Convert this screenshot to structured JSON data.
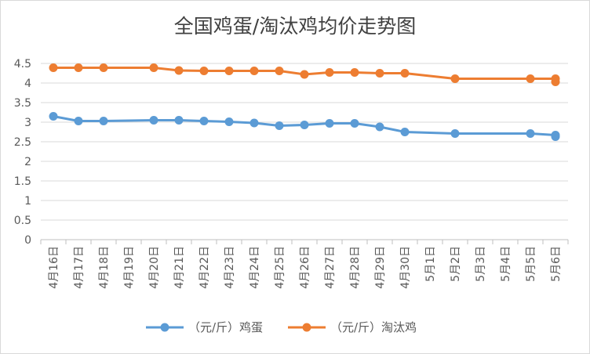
{
  "chart_data": {
    "type": "line",
    "title": "全国鸡蛋/淘汰鸡均价走势图",
    "categories": [
      "4月16日",
      "4月17日",
      "4月18日",
      "4月19日",
      "4月20日",
      "4月21日",
      "4月22日",
      "4月23日",
      "4月24日",
      "4月25日",
      "4月26日",
      "4月27日",
      "4月28日",
      "4月29日",
      "4月30日",
      "5月1日",
      "5月2日",
      "5月3日",
      "5月4日",
      "5月5日",
      "5月6日"
    ],
    "ylim": [
      0,
      4.5
    ],
    "yticks": [
      "0",
      "0.5",
      "1",
      "1.5",
      "2",
      "2.5",
      "3",
      "3.5",
      "4",
      "4.5"
    ],
    "grid": true,
    "legend_position": "bottom",
    "series": [
      {
        "name": "（元/斤）鸡蛋",
        "color": "#5b9bd5",
        "points": [
          {
            "x": "4月16日",
            "y": 3.15
          },
          {
            "x": "4月17日",
            "y": 3.03
          },
          {
            "x": "4月18日",
            "y": 3.03
          },
          {
            "x": "4月20日",
            "y": 3.05
          },
          {
            "x": "4月21日",
            "y": 3.05
          },
          {
            "x": "4月22日",
            "y": 3.03
          },
          {
            "x": "4月23日",
            "y": 3.01
          },
          {
            "x": "4月24日",
            "y": 2.98
          },
          {
            "x": "4月25日",
            "y": 2.91
          },
          {
            "x": "4月26日",
            "y": 2.93
          },
          {
            "x": "4月27日",
            "y": 2.97
          },
          {
            "x": "4月28日",
            "y": 2.97
          },
          {
            "x": "4月29日",
            "y": 2.88
          },
          {
            "x": "4月30日",
            "y": 2.75
          },
          {
            "x": "5月2日",
            "y": 2.71
          },
          {
            "x": "5月5日",
            "y": 2.71
          },
          {
            "x": "5月6日",
            "y": 2.67
          },
          {
            "x": "5月6日",
            "y": 2.63
          }
        ]
      },
      {
        "name": "（元/斤）淘汰鸡",
        "color": "#ed7d31",
        "points": [
          {
            "x": "4月16日",
            "y": 4.39
          },
          {
            "x": "4月17日",
            "y": 4.39
          },
          {
            "x": "4月18日",
            "y": 4.39
          },
          {
            "x": "4月20日",
            "y": 4.39
          },
          {
            "x": "4月21日",
            "y": 4.32
          },
          {
            "x": "4月22日",
            "y": 4.31
          },
          {
            "x": "4月23日",
            "y": 4.31
          },
          {
            "x": "4月24日",
            "y": 4.31
          },
          {
            "x": "4月25日",
            "y": 4.31
          },
          {
            "x": "4月26日",
            "y": 4.22
          },
          {
            "x": "4月27日",
            "y": 4.27
          },
          {
            "x": "4月28日",
            "y": 4.27
          },
          {
            "x": "4月29日",
            "y": 4.25
          },
          {
            "x": "4月30日",
            "y": 4.25
          },
          {
            "x": "5月2日",
            "y": 4.11
          },
          {
            "x": "5月5日",
            "y": 4.11
          },
          {
            "x": "5月6日",
            "y": 4.11
          },
          {
            "x": "5月6日",
            "y": 4.03
          }
        ]
      }
    ]
  }
}
